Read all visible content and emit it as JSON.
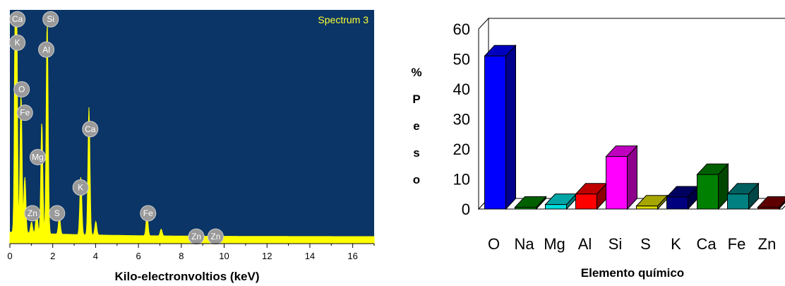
{
  "chart_data": [
    {
      "type": "line",
      "title": "Spectrum 3",
      "xlabel": "Kilo-electronvoltios (keV)",
      "ylabel": "",
      "xlim": [
        0,
        17
      ],
      "x_ticks": [
        "0",
        "2",
        "4",
        "6",
        "8",
        "10",
        "12",
        "14",
        "16"
      ],
      "background": "#0a3566",
      "line_color": "#ffff00",
      "peaks": [
        {
          "label": "Ca",
          "x": 0.3,
          "height": 1.0
        },
        {
          "label": "K",
          "x": 0.26,
          "height": 0.85
        },
        {
          "label": "O",
          "x": 0.52,
          "height": 0.62
        },
        {
          "label": "Fe",
          "x": 0.7,
          "height": 0.25
        },
        {
          "label": "Zn",
          "x": 1.01,
          "height": 0.05
        },
        {
          "label": "Mg",
          "x": 1.25,
          "height": 0.1
        },
        {
          "label": "Al",
          "x": 1.49,
          "height": 0.5
        },
        {
          "label": "Si",
          "x": 1.74,
          "height": 0.95
        },
        {
          "label": "S",
          "x": 2.31,
          "height": 0.08
        },
        {
          "label": "K",
          "x": 3.31,
          "height": 0.26
        },
        {
          "label": "Ca",
          "x": 3.69,
          "height": 0.57
        },
        {
          "label": "Ca",
          "x": 4.01,
          "height": 0.06
        },
        {
          "label": "Fe",
          "x": 6.4,
          "height": 0.1
        },
        {
          "label": "Fe",
          "x": 7.06,
          "height": 0.03
        },
        {
          "label": "Zn",
          "x": 8.63,
          "height": 0.012
        },
        {
          "label": "Zn",
          "x": 9.57,
          "height": 0.008
        }
      ],
      "peak_labels": [
        {
          "text": "Ca",
          "x": 0.35,
          "y_frac": 0.96
        },
        {
          "text": "K",
          "x": 0.35,
          "y_frac": 0.86
        },
        {
          "text": "Si",
          "x": 1.9,
          "y_frac": 0.96
        },
        {
          "text": "Al",
          "x": 1.7,
          "y_frac": 0.83
        },
        {
          "text": "O",
          "x": 0.55,
          "y_frac": 0.66
        },
        {
          "text": "Fe",
          "x": 0.7,
          "y_frac": 0.56
        },
        {
          "text": "Mg",
          "x": 1.3,
          "y_frac": 0.37
        },
        {
          "text": "Ca",
          "x": 3.75,
          "y_frac": 0.49
        },
        {
          "text": "K",
          "x": 3.3,
          "y_frac": 0.24
        },
        {
          "text": "Zn",
          "x": 1.05,
          "y_frac": 0.13
        },
        {
          "text": "S",
          "x": 2.2,
          "y_frac": 0.13
        },
        {
          "text": "Fe",
          "x": 6.45,
          "y_frac": 0.13
        },
        {
          "text": "Zn",
          "x": 8.7,
          "y_frac": 0.03
        },
        {
          "text": "Zn",
          "x": 9.6,
          "y_frac": 0.03
        }
      ]
    },
    {
      "type": "bar",
      "title": "",
      "xlabel": "Elemento químico",
      "ylabel_letters": [
        "%",
        "P",
        "e",
        "s",
        "o"
      ],
      "ylim": [
        0,
        60
      ],
      "y_ticks": [
        "0",
        "10",
        "20",
        "30",
        "40",
        "50",
        "60"
      ],
      "categories": [
        "O",
        "Na",
        "Mg",
        "Al",
        "Si",
        "S",
        "K",
        "Ca",
        "Fe",
        "Zn"
      ],
      "values": [
        51,
        0.5,
        1.5,
        5,
        17.5,
        1,
        4,
        11.5,
        5,
        0.5
      ],
      "colors": [
        "#0000ff",
        "#008000",
        "#00dddd",
        "#ff0000",
        "#ff00ff",
        "#dddd00",
        "#00007f",
        "#008000",
        "#008080",
        "#7f0000"
      ]
    }
  ]
}
